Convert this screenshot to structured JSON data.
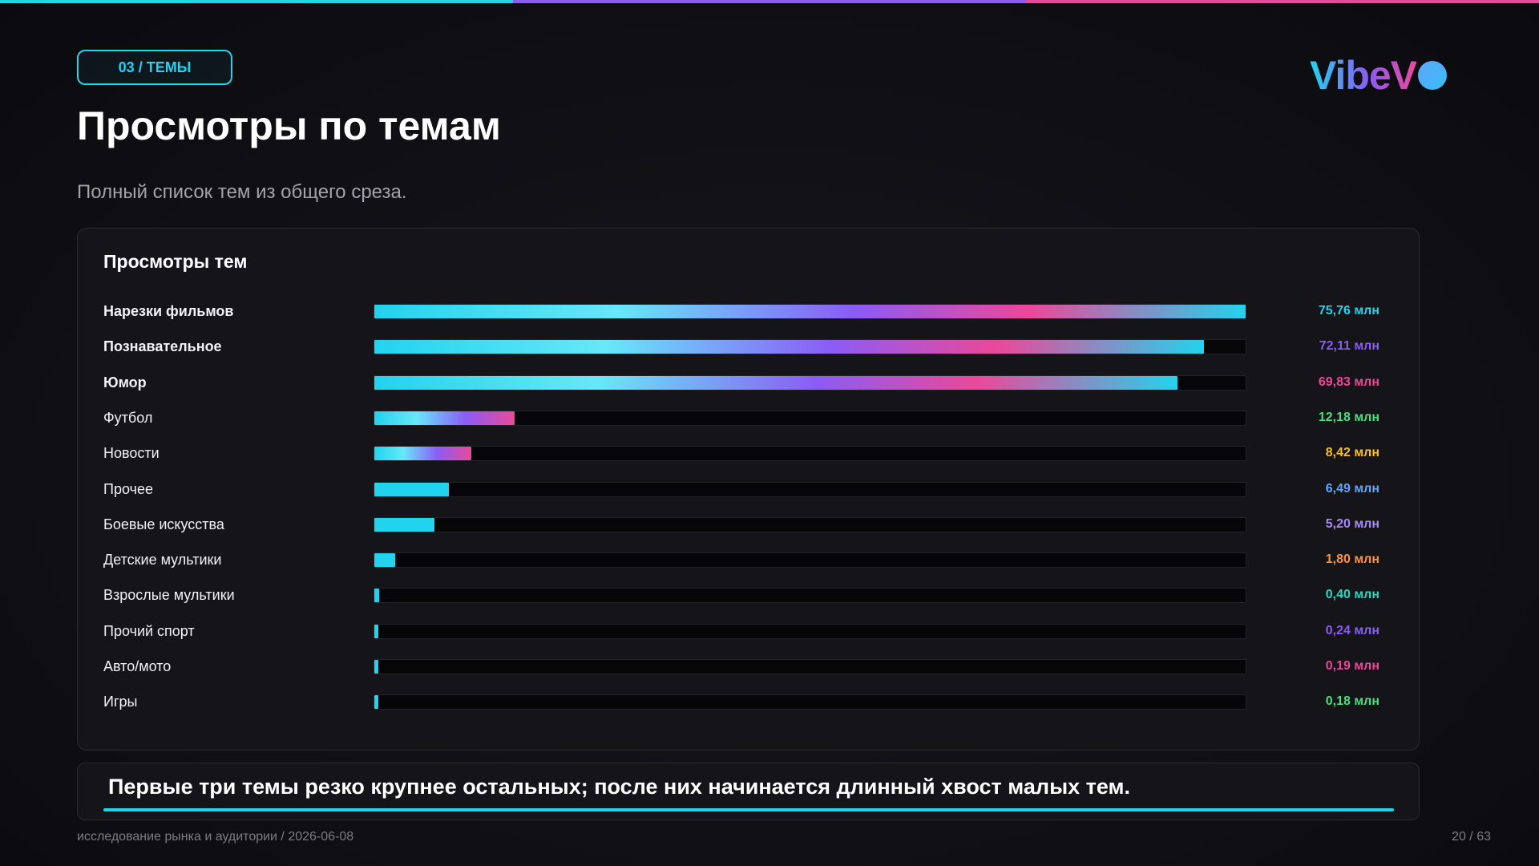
{
  "header": {
    "badge": "03 / ТЕМЫ",
    "logo": "VibeV",
    "title": "Просмотры по темам",
    "subtitle": "Полный список тем из общего среза."
  },
  "accent_colors": [
    "#22d3ee",
    "#8b5cf6",
    "#ec4899"
  ],
  "chart_data": {
    "type": "bar",
    "orientation": "horizontal",
    "title": "Просмотры тем",
    "xlim": [
      0,
      75.76
    ],
    "categories": [
      "Нарезки фильмов",
      "Познавательное",
      "Юмор",
      "Футбол",
      "Новости",
      "Прочее",
      "Боевые искусства",
      "Детские мультики",
      "Взрослые мультики",
      "Прочий спорт",
      "Авто/мото",
      "Игры"
    ],
    "values": [
      75.76,
      72.11,
      69.83,
      12.18,
      8.42,
      6.49,
      5.2,
      1.8,
      0.4,
      0.24,
      0.19,
      0.18
    ],
    "value_labels": [
      "75,76 млн",
      "72,11 млн",
      "69,83 млн",
      "12,18 млн",
      "8,42 млн",
      "6,49 млн",
      "5,20 млн",
      "1,80 млн",
      "0,40 млн",
      "0,24 млн",
      "0,19 млн",
      "0,18 млн"
    ],
    "highlighted": [
      true,
      true,
      true,
      false,
      false,
      false,
      false,
      false,
      false,
      false,
      false,
      false
    ],
    "value_colors": [
      "#22d3ee",
      "#8b5cf6",
      "#ec4899",
      "#4ade80",
      "#fbbf24",
      "#60a5fa",
      "#a78bfa",
      "#fb923c",
      "#2dd4bf",
      "#8b5cf6",
      "#ec4899",
      "#4ade80"
    ]
  },
  "callout": {
    "text": "Первые три темы резко крупнее остальных; после них начинается длинный хвост малых тем."
  },
  "footer": {
    "left": "исследование рынка и аудитории / 2026-06-08",
    "page": "20 / 63"
  }
}
